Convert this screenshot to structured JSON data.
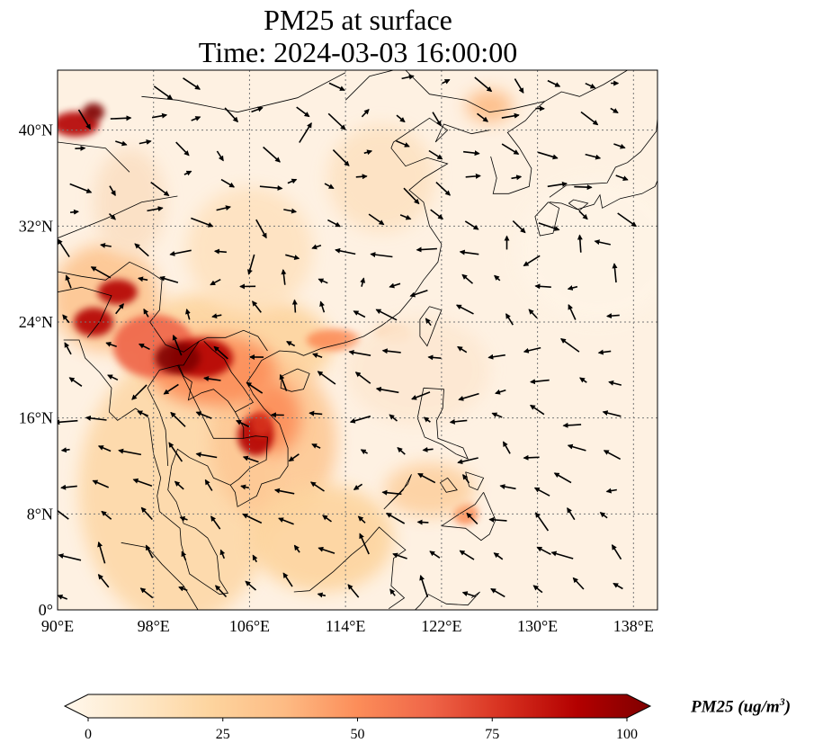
{
  "title": {
    "line1": "PM25 at surface",
    "line2": "Time: 2024-03-03 16:00:00"
  },
  "map": {
    "extent_lon": [
      90,
      140
    ],
    "extent_lat": [
      0,
      45
    ],
    "lon_ticks": [
      {
        "value": 90,
        "label": "90°E"
      },
      {
        "value": 98,
        "label": "98°E"
      },
      {
        "value": 106,
        "label": "106°E"
      },
      {
        "value": 114,
        "label": "114°E"
      },
      {
        "value": 122,
        "label": "122°E"
      },
      {
        "value": 130,
        "label": "130°E"
      },
      {
        "value": 138,
        "label": "138°E"
      }
    ],
    "lat_ticks": [
      {
        "value": 0,
        "label": "0°"
      },
      {
        "value": 8,
        "label": "8°N"
      },
      {
        "value": 16,
        "label": "16°N"
      },
      {
        "value": 24,
        "label": "24°N"
      },
      {
        "value": 32,
        "label": "32°N"
      },
      {
        "value": 40,
        "label": "40°N"
      }
    ],
    "gridlines": true,
    "field": "PM25",
    "wind_vectors": true,
    "colormap": "OrRd"
  },
  "colorbar": {
    "title": "PM25 (ug/m",
    "title_sup": "3",
    "title_close": ")",
    "min": 0,
    "max": 100,
    "ticks": [
      {
        "value": 0,
        "label": "0"
      },
      {
        "value": 25,
        "label": "25"
      },
      {
        "value": 50,
        "label": "50"
      },
      {
        "value": 75,
        "label": "75"
      },
      {
        "value": 100,
        "label": "100"
      }
    ],
    "colors": [
      "#fff7ec",
      "#fee8c8",
      "#fdd49e",
      "#fdbb84",
      "#fc8d59",
      "#ef6548",
      "#d7301f",
      "#b30000",
      "#7f0000"
    ]
  }
}
